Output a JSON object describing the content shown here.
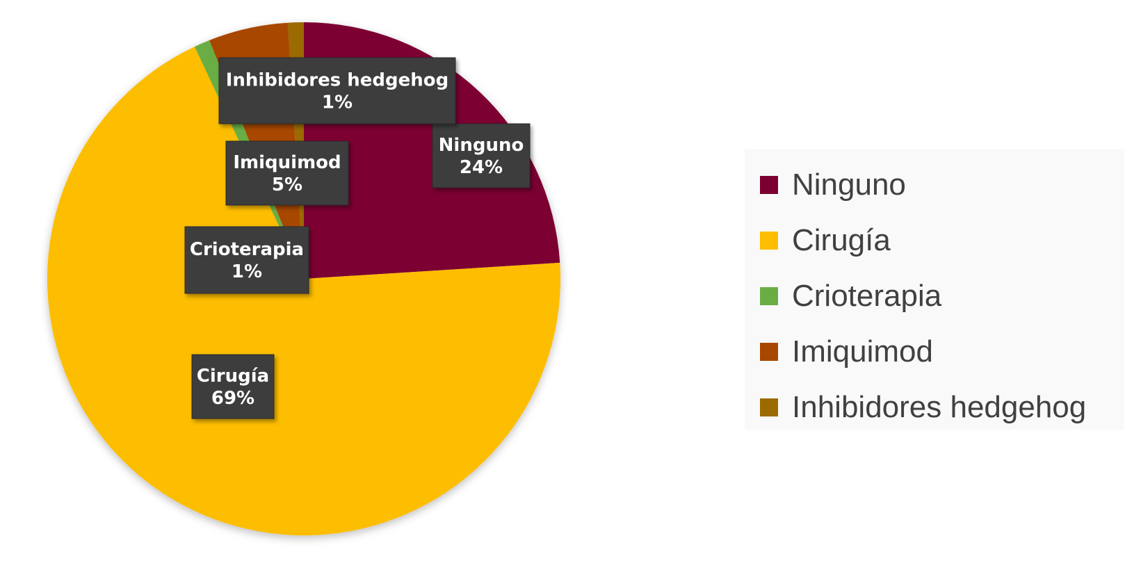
{
  "chart_data": {
    "type": "pie",
    "title": "",
    "legend_position": "right",
    "slices": [
      {
        "name": "Ninguno",
        "value": 24,
        "label": "Ninguno\n24%",
        "color": "#7b0032"
      },
      {
        "name": "Cirugía",
        "value": 69,
        "label": "Cirugía\n69%",
        "color": "#fdbd00"
      },
      {
        "name": "Crioterapia",
        "value": 1,
        "label": "Crioterapia\n1%",
        "color": "#6aad45"
      },
      {
        "name": "Imiquimod",
        "value": 5,
        "label": "Imiquimod\n5%",
        "color": "#a84700"
      },
      {
        "name": "Inhibidores hedgehog",
        "value": 1,
        "label": "Inhibidores hedgehog\n1%",
        "color": "#9b6b00"
      }
    ]
  }
}
